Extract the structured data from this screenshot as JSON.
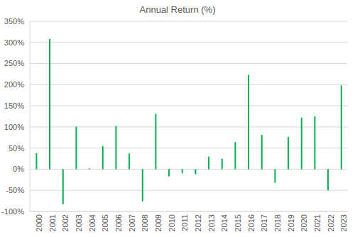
{
  "chart_data": {
    "type": "bar",
    "title": "Annual Return (%)",
    "categories": [
      "2000",
      "2001",
      "2002",
      "2003",
      "2004",
      "2005",
      "2006",
      "2007",
      "2008",
      "2009",
      "2010",
      "2011",
      "2012",
      "2013",
      "2014",
      "2015",
      "2016",
      "2017",
      "2018",
      "2019",
      "2020",
      "2021",
      "2022",
      "2023"
    ],
    "values": [
      38,
      308,
      -83,
      101,
      2,
      55,
      102,
      37,
      -76,
      131,
      -17,
      -10,
      -12,
      30,
      25,
      64,
      223,
      81,
      -32,
      76,
      122,
      125,
      -50,
      198
    ],
    "color": "#00b050",
    "ylim": [
      -100,
      350
    ],
    "yticks": [
      {
        "value": -100,
        "label": "-100%"
      },
      {
        "value": -50,
        "label": "-50%"
      },
      {
        "value": 0,
        "label": "0%"
      },
      {
        "value": 50,
        "label": "50%"
      },
      {
        "value": 100,
        "label": "100%"
      },
      {
        "value": 150,
        "label": "150%"
      },
      {
        "value": 200,
        "label": "200%"
      },
      {
        "value": 250,
        "label": "250%"
      },
      {
        "value": 300,
        "label": "300%"
      },
      {
        "value": 350,
        "label": "350%"
      }
    ],
    "grid": true
  }
}
